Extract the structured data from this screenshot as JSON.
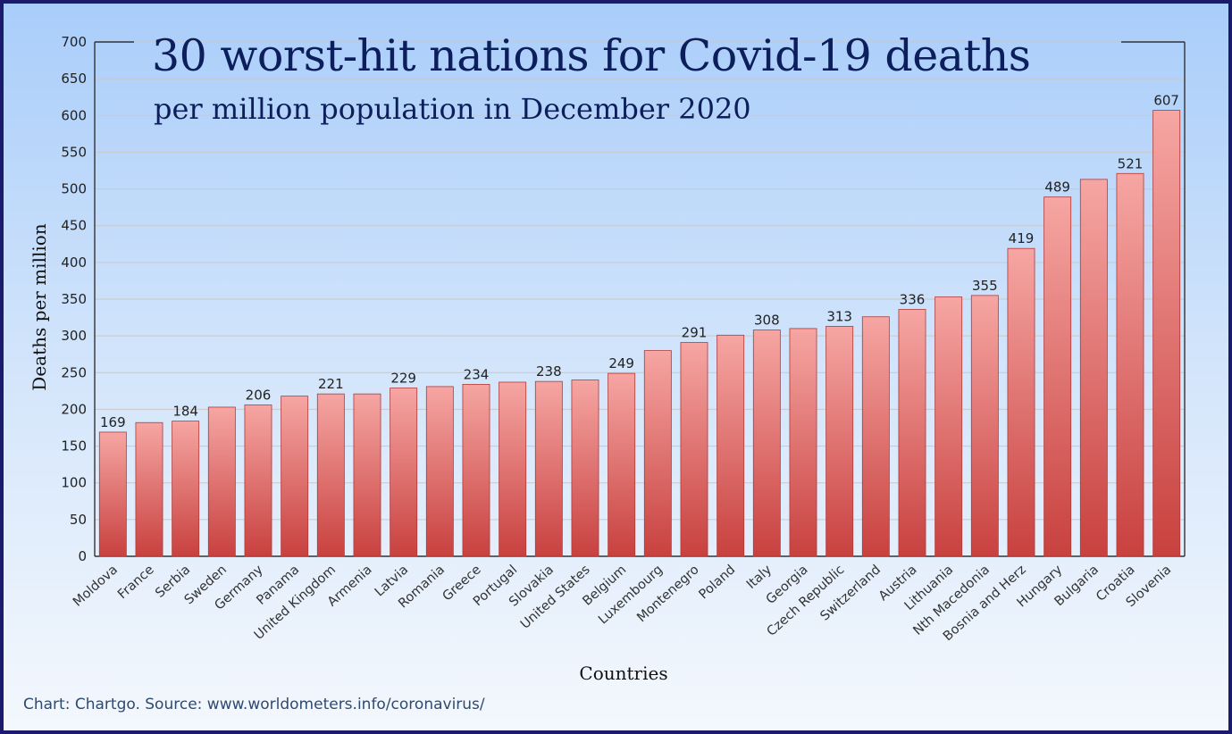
{
  "chart_data": {
    "type": "bar",
    "title": "30 worst-hit nations for Covid-19 deaths",
    "subtitle": "per million population in December 2020",
    "xlabel": "Countries",
    "ylabel": "Deaths per million",
    "ylim": [
      0,
      700
    ],
    "yticks": [
      0,
      50,
      100,
      150,
      200,
      250,
      300,
      350,
      400,
      450,
      500,
      550,
      600,
      650,
      700
    ],
    "grid": true,
    "legend": "none",
    "bar_color": "#d9514e",
    "categories": [
      "Moldova",
      "France",
      "Serbia",
      "Sweden",
      "Germany",
      "Panama",
      "United Kingdom",
      "Armenia",
      "Latvia",
      "Romania",
      "Greece",
      "Portugal",
      "Slovakia",
      "United States",
      "Belgium",
      "Luxembourg",
      "Montenegro",
      "Poland",
      "Italy",
      "Georgia",
      "Czech Republic",
      "Switzerland",
      "Austria",
      "Lithuania",
      "Nth Macedonia",
      "Bosnia and Herz",
      "Hungary",
      "Bulgaria",
      "Croatia",
      "Slovenia"
    ],
    "values": [
      169,
      182,
      184,
      203,
      206,
      218,
      221,
      221,
      229,
      231,
      234,
      237,
      238,
      240,
      249,
      280,
      291,
      301,
      308,
      310,
      313,
      326,
      336,
      353,
      355,
      419,
      489,
      513,
      521,
      607
    ],
    "data_labels": [
      "169",
      "",
      "184",
      "",
      "206",
      "",
      "221",
      "",
      "229",
      "",
      "234",
      "",
      "238",
      "",
      "249",
      "",
      "291",
      "",
      "308",
      "",
      "313",
      "",
      "336",
      "",
      "355",
      "419",
      "489",
      "",
      "521",
      "607"
    ]
  },
  "footer": "Chart: Chartgo. Source: www.worldometers.info/coronavirus/"
}
